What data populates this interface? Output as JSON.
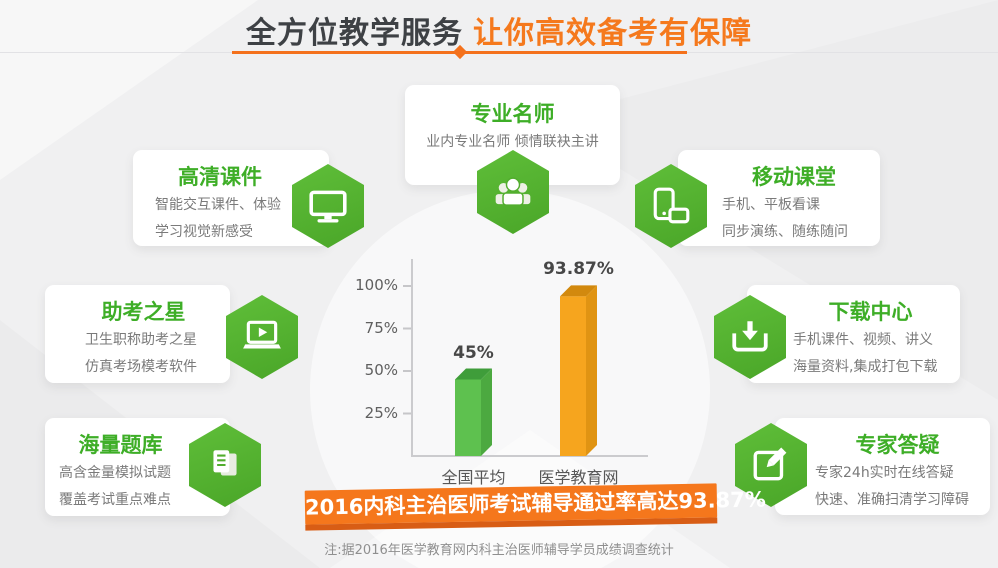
{
  "header": {
    "title_dark": "全方位教学服务",
    "title_orange": "让你高效备考有保障"
  },
  "features": {
    "teachers": {
      "title": "专业名师",
      "icon": "people-icon",
      "lines": [
        "业内专业名师 倾情联袂主讲"
      ]
    },
    "hd_courseware": {
      "title": "高清课件",
      "icon": "monitor-icon",
      "lines": [
        "智能交互课件、体验",
        "学习视觉新感受"
      ]
    },
    "mobile_class": {
      "title": "移动课堂",
      "icon": "phone-tablet-icon",
      "lines": [
        "手机、平板看课",
        "同步演练、随练随问"
      ]
    },
    "exam_star": {
      "title": "助考之星",
      "icon": "laptop-play-icon",
      "lines": [
        "卫生职称助考之星",
        "仿真考场模考软件"
      ]
    },
    "download_center": {
      "title": "下载中心",
      "icon": "download-icon",
      "lines": [
        "手机课件、视频、讲义",
        "海量资料,集成打包下载"
      ]
    },
    "question_bank": {
      "title": "海量题库",
      "icon": "documents-icon",
      "lines": [
        "高含金量模拟试题",
        "覆盖考试重点难点"
      ]
    },
    "expert_qa": {
      "title": "专家答疑",
      "icon": "pencil-square-icon",
      "lines": [
        "专家24h实时在线答疑",
        "快速、准确扫清学习障碍"
      ]
    }
  },
  "chart_data": {
    "type": "bar",
    "title": "",
    "xlabel": "",
    "ylabel": "",
    "categories": [
      "全国平均",
      "医学教育网"
    ],
    "values": [
      45,
      93.87
    ],
    "value_labels": [
      "45%",
      "93.87%"
    ],
    "ylim": [
      0,
      100
    ],
    "yticks": [
      25,
      50,
      75,
      100
    ],
    "ytick_labels": [
      "25%",
      "50%",
      "75%",
      "100%"
    ],
    "grid": false,
    "legend": "none",
    "bar_colors": [
      {
        "front": "#5ec14f",
        "top": "#3f9d3a",
        "side": "#4ca940"
      },
      {
        "front": "#f6a51e",
        "top": "#d2890e",
        "side": "#e09413"
      }
    ]
  },
  "banner": {
    "text": "2016内科主治医师考试辅导通过率高达93.87%"
  },
  "footnote": "注:据2016年医学教育网内科主治医师辅导学员成绩调查统计",
  "colors": {
    "accent_green": "#3eae27",
    "hexagon_green": "#55b42f",
    "accent_orange": "#f5791d",
    "banner_orange": "#f5771c",
    "banner_edge": "#d85d15",
    "title_dark": "#3e4145",
    "background": "#f0f0f1"
  }
}
